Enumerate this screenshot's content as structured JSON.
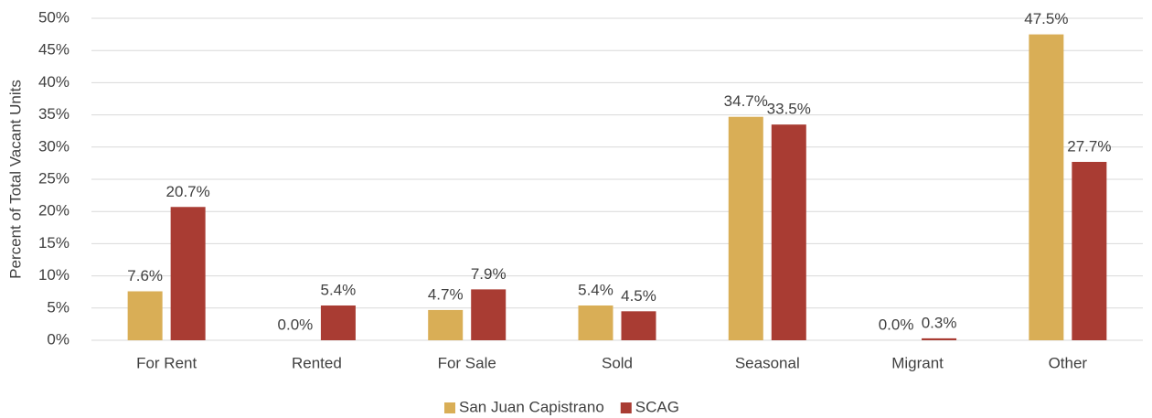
{
  "chart_data": {
    "type": "bar",
    "y_label": "Percent of Total Vacant Units",
    "categories": [
      "For Rent",
      "Rented",
      "For Sale",
      "Sold",
      "Seasonal",
      "Migrant",
      "Other"
    ],
    "series": [
      {
        "name": "San Juan Capistrano",
        "color": "#d9ae56",
        "values": [
          7.6,
          0.0,
          4.7,
          5.4,
          34.7,
          0.0,
          47.5
        ],
        "value_labels": [
          "7.6%",
          "0.0%",
          "4.7%",
          "5.4%",
          "34.7%",
          "0.0%",
          "47.5%"
        ]
      },
      {
        "name": "SCAG",
        "color": "#a93c33",
        "values": [
          20.7,
          5.4,
          7.9,
          4.5,
          33.5,
          0.3,
          27.7
        ],
        "value_labels": [
          "20.7%",
          "5.4%",
          "7.9%",
          "4.5%",
          "33.5%",
          "0.3%",
          "27.7%"
        ]
      }
    ],
    "ylim": [
      0,
      50
    ],
    "yticks": [
      {
        "value": 0,
        "label": "0%"
      },
      {
        "value": 5,
        "label": "5%"
      },
      {
        "value": 10,
        "label": "10%"
      },
      {
        "value": 15,
        "label": "15%"
      },
      {
        "value": 20,
        "label": "20%"
      },
      {
        "value": 25,
        "label": "25%"
      },
      {
        "value": 30,
        "label": "30%"
      },
      {
        "value": 35,
        "label": "35%"
      },
      {
        "value": 40,
        "label": "40%"
      },
      {
        "value": 45,
        "label": "45%"
      },
      {
        "value": 50,
        "label": "50%"
      }
    ],
    "grid": true,
    "legend": "bottom"
  }
}
